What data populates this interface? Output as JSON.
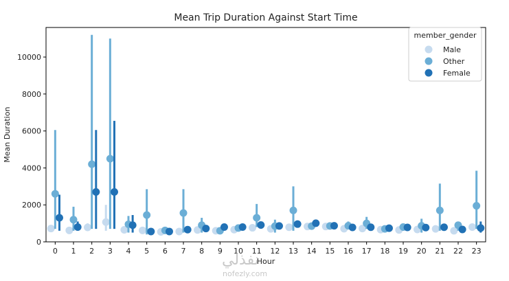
{
  "chart_data": {
    "type": "pointplot",
    "title": "Mean Trip Duration Against Start Time",
    "xlabel": "Hour",
    "ylabel": "Mean Duration",
    "categories": [
      "0",
      "1",
      "2",
      "3",
      "4",
      "5",
      "6",
      "7",
      "8",
      "9",
      "10",
      "11",
      "12",
      "13",
      "14",
      "15",
      "16",
      "17",
      "18",
      "19",
      "20",
      "21",
      "22",
      "23"
    ],
    "ylim": [
      0,
      11600
    ],
    "yticks": [
      0,
      2000,
      4000,
      6000,
      8000,
      10000
    ],
    "legend": {
      "title": "member_gender",
      "position": "top-right"
    },
    "series": [
      {
        "name": "Male",
        "color": "#c6dbef",
        "values": [
          720,
          620,
          780,
          1070,
          650,
          620,
          540,
          560,
          640,
          600,
          660,
          760,
          700,
          790,
          830,
          830,
          710,
          720,
          660,
          640,
          670,
          700,
          600,
          800
        ],
        "ci_low": [
          600,
          520,
          600,
          600,
          550,
          500,
          450,
          470,
          540,
          500,
          560,
          640,
          590,
          680,
          720,
          720,
          610,
          620,
          560,
          540,
          570,
          600,
          500,
          650
        ],
        "ci_high": [
          850,
          730,
          1000,
          2000,
          760,
          740,
          640,
          660,
          750,
          700,
          770,
          890,
          820,
          910,
          950,
          950,
          820,
          830,
          770,
          750,
          780,
          810,
          710,
          950
        ]
      },
      {
        "name": "Other",
        "color": "#6baed6",
        "values": [
          2600,
          1200,
          4200,
          4500,
          950,
          1450,
          620,
          1560,
          900,
          600,
          750,
          1300,
          850,
          1700,
          850,
          860,
          870,
          1000,
          700,
          800,
          870,
          1700,
          900,
          1950
        ],
        "ci_low": [
          700,
          600,
          700,
          700,
          500,
          400,
          500,
          500,
          500,
          500,
          600,
          800,
          500,
          600,
          700,
          700,
          700,
          700,
          600,
          600,
          500,
          600,
          600,
          700
        ],
        "ci_high": [
          6050,
          1900,
          11200,
          11000,
          1400,
          2850,
          750,
          2850,
          1300,
          700,
          900,
          2050,
          1200,
          3000,
          1000,
          1000,
          1100,
          1350,
          800,
          1000,
          1250,
          3150,
          1050,
          3850
        ]
      },
      {
        "name": "Female",
        "color": "#2171b5",
        "values": [
          1300,
          800,
          2700,
          2700,
          900,
          560,
          560,
          660,
          720,
          800,
          800,
          910,
          860,
          960,
          1010,
          870,
          780,
          790,
          740,
          780,
          770,
          790,
          670,
          750
        ],
        "ci_low": [
          600,
          600,
          700,
          700,
          500,
          450,
          470,
          570,
          620,
          700,
          700,
          800,
          760,
          850,
          900,
          770,
          680,
          690,
          640,
          680,
          670,
          690,
          570,
          500
        ],
        "ci_high": [
          2550,
          1100,
          6050,
          6550,
          1450,
          700,
          660,
          760,
          820,
          900,
          900,
          1050,
          960,
          1070,
          1120,
          970,
          880,
          890,
          840,
          880,
          870,
          890,
          770,
          1100
        ]
      }
    ]
  },
  "watermark": {
    "arabic": "نفذلي",
    "latin": "nofezly.com"
  }
}
